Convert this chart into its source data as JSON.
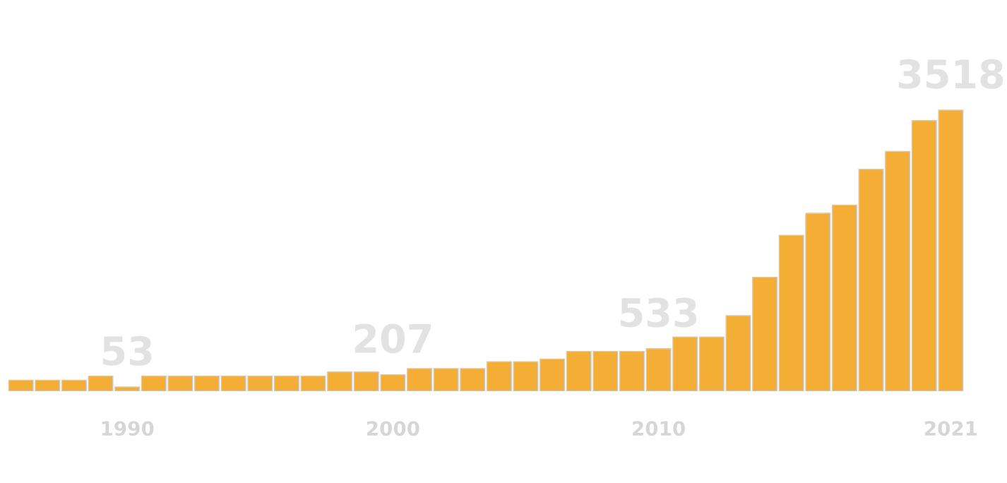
{
  "chart_data": {
    "type": "bar",
    "categories": [
      null,
      null,
      null,
      null,
      "1990",
      null,
      null,
      null,
      null,
      null,
      null,
      null,
      null,
      null,
      "2000",
      null,
      null,
      null,
      null,
      null,
      null,
      null,
      null,
      null,
      "2010",
      null,
      null,
      null,
      null,
      null,
      null,
      null,
      null,
      null,
      null,
      "2021"
    ],
    "values": [
      138,
      138,
      138,
      189,
      53,
      189,
      189,
      189,
      189,
      189,
      189,
      189,
      241,
      241,
      207,
      284,
      284,
      284,
      370,
      370,
      404,
      499,
      499,
      499,
      533,
      679,
      679,
      946,
      1427,
      1952,
      2227,
      2330,
      2777,
      3001,
      3388,
      3518
    ],
    "value_labels": [
      null,
      null,
      null,
      null,
      "53",
      null,
      null,
      null,
      null,
      null,
      null,
      null,
      null,
      null,
      "207",
      null,
      null,
      null,
      null,
      null,
      null,
      null,
      null,
      null,
      "533",
      null,
      null,
      null,
      null,
      null,
      null,
      null,
      null,
      null,
      null,
      "3518"
    ],
    "color": "#f4ad35",
    "grid": false,
    "legend": false
  }
}
